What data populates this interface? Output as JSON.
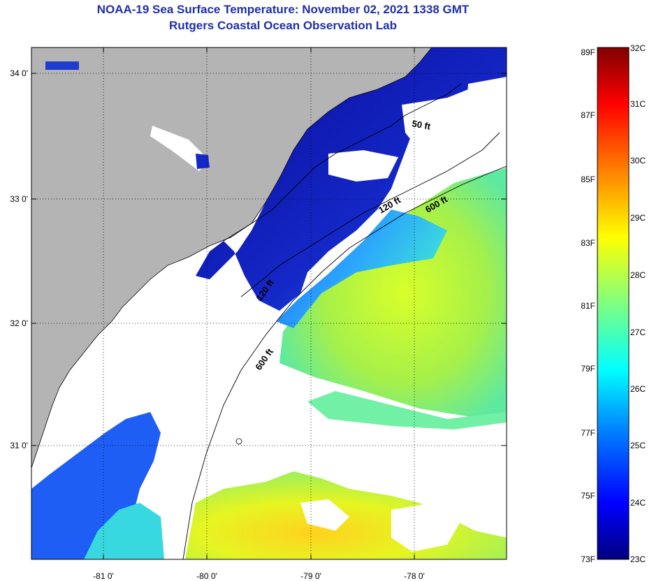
{
  "title": {
    "line1": "NOAA-19 Sea Surface Temperature:  November 02, 2021 1338 GMT",
    "line2": "Rutgers Coastal Ocean Observation Lab"
  },
  "map": {
    "lat_ticks": [
      "34 0'",
      "33 0'",
      "32 0'",
      "31 0'"
    ],
    "lon_ticks": [
      "-81 0'",
      "-80 0'",
      "-79 0'",
      "-78 0'"
    ],
    "contours": [
      "50 ft",
      "120 ft",
      "600 ft",
      "120 ft",
      "600 ft"
    ],
    "colors": {
      "land": "#b4b4b4",
      "cloud": "#ffffff",
      "cold": "#0a0a96",
      "mid": "#1e8cff",
      "warm": "#a0f050",
      "hot": "#ffd21e"
    }
  },
  "colorbar": {
    "f_labels": [
      "89F",
      "87F",
      "85F",
      "83F",
      "81F",
      "79F",
      "77F",
      "75F",
      "73F"
    ],
    "c_labels": [
      "32C",
      "31C",
      "30C",
      "29C",
      "28C",
      "27C",
      "26C",
      "25C",
      "24C",
      "23C"
    ],
    "range_c": [
      23,
      32
    ],
    "colormap": [
      "#000080",
      "#0000ff",
      "#0080ff",
      "#00ffff",
      "#80ff80",
      "#ffff00",
      "#ff8000",
      "#ff0000",
      "#800000"
    ]
  }
}
